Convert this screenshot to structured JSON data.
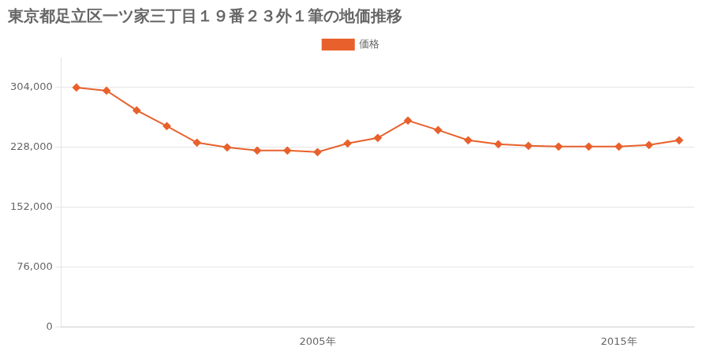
{
  "chart_data": {
    "type": "line",
    "title": "東京都足立区一ツ家三丁目１９番２３外１筆の地価推移",
    "x": [
      1997,
      1998,
      1999,
      2000,
      2001,
      2002,
      2003,
      2004,
      2005,
      2006,
      2007,
      2008,
      2009,
      2010,
      2011,
      2012,
      2013,
      2014,
      2015,
      2016,
      2017
    ],
    "series": [
      {
        "name": "価格",
        "color": "#E8612C",
        "marker": "diamond",
        "values": [
          304000,
          300000,
          275000,
          255000,
          234000,
          228000,
          224000,
          224000,
          222000,
          233000,
          240000,
          262000,
          250000,
          237000,
          232000,
          230000,
          229000,
          229000,
          229000,
          231000,
          237000
        ]
      }
    ],
    "xlim": [
      1996.5,
      2017.5
    ],
    "xticks": [
      {
        "value": 2005,
        "label": "2005年"
      },
      {
        "value": 2015,
        "label": "2015年"
      }
    ],
    "ylim": [
      0,
      342000
    ],
    "yticks": [
      0,
      {
        "value": 76000,
        "label": "76,000"
      },
      {
        "value": 152000,
        "label": "152,000"
      },
      {
        "value": 228000,
        "label": "228,000"
      },
      {
        "value": 304000,
        "label": "304,000"
      }
    ],
    "grid": "y",
    "legend": "top"
  }
}
